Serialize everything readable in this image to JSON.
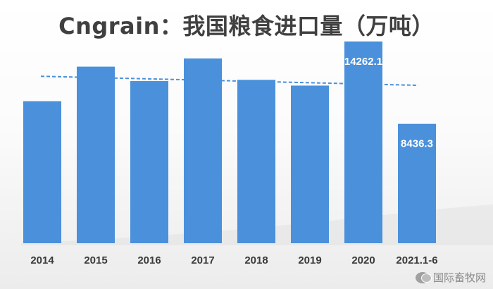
{
  "chart_data": {
    "type": "bar",
    "title": "Cngrain：我国粮食进口量（万吨）",
    "categories": [
      "2014",
      "2015",
      "2016",
      "2017",
      "2018",
      "2019",
      "2020",
      "2021.1-6"
    ],
    "values": [
      10040,
      12480,
      11460,
      13060,
      11550,
      11140,
      14262.1,
      8436.3
    ],
    "data_labels": [
      "",
      "",
      "",
      "",
      "",
      "",
      "14262.1",
      "8436.3"
    ],
    "trendline": {
      "type": "linear",
      "start": 11800,
      "end": 11160
    },
    "ylim": [
      0,
      15000
    ],
    "grid": false,
    "legend": "none",
    "bar_color": "#4a90db",
    "label_color": "#ffffff",
    "trendline_color": "#4a90db"
  },
  "watermark": {
    "icon": "wechat-icon",
    "text": "国际畜牧网"
  }
}
